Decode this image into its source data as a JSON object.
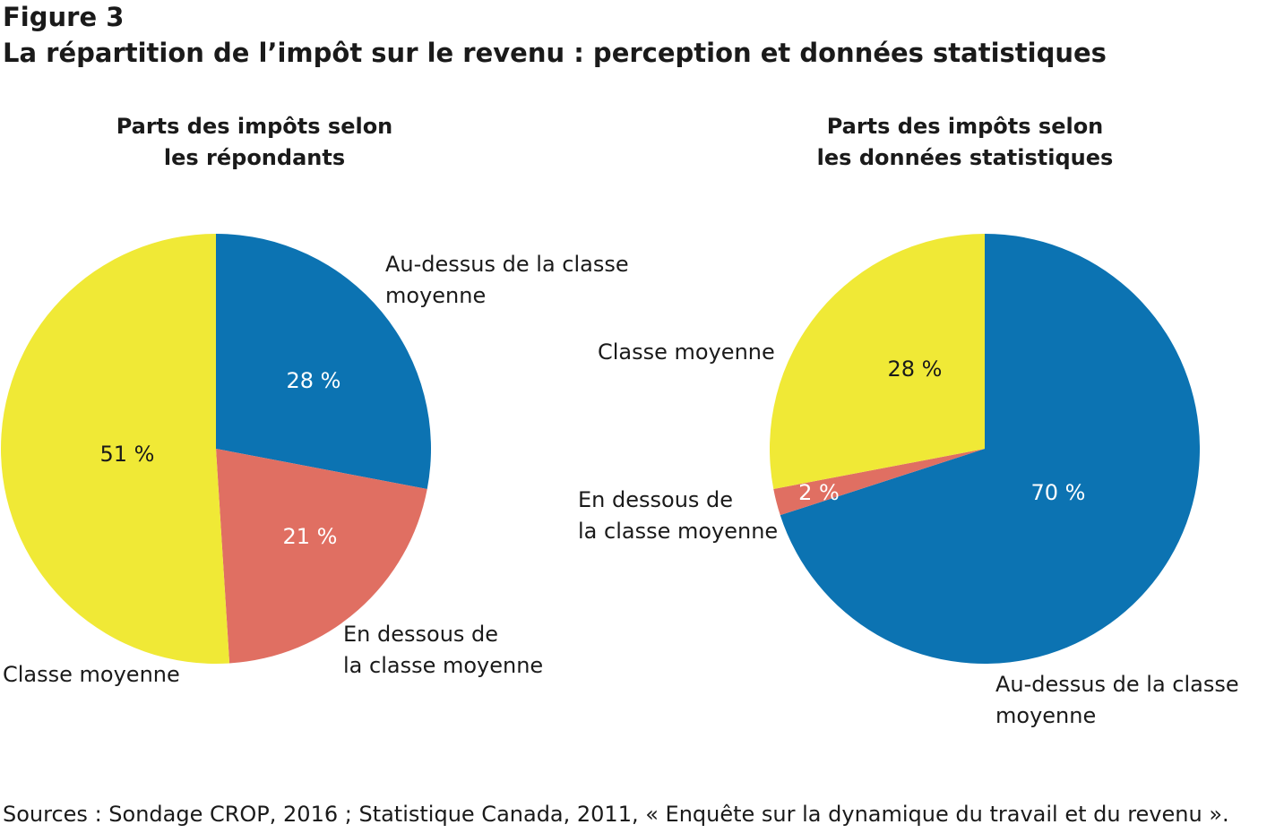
{
  "figure": {
    "number": "Figure 3",
    "title": "La répartition de l’impôt sur le revenu : perception et données statistiques",
    "source": "Sources : Sondage CROP, 2016 ; Statistique Canada, 2011, « Enquête sur la dynamique du travail et du revenu »."
  },
  "colors": {
    "above": "#0c73b2",
    "below": "#e06f62",
    "middle": "#f0e936"
  },
  "chart_data": [
    {
      "type": "pie",
      "title_lines": [
        "Parts des impôts selon",
        "les répondants"
      ],
      "slices": [
        {
          "name_lines": [
            "Au-dessus de la classe",
            "moyenne"
          ],
          "value": 28,
          "label": "28 %",
          "color": "#0c73b2",
          "label_color": "#ffffff"
        },
        {
          "name_lines": [
            "En dessous de",
            "la classe moyenne"
          ],
          "value": 21,
          "label": "21 %",
          "color": "#e06f62",
          "label_color": "#ffffff"
        },
        {
          "name_lines": [
            "Classe moyenne"
          ],
          "value": 51,
          "label": "51 %",
          "color": "#f0e936",
          "label_color": "#1a1a1a"
        }
      ]
    },
    {
      "type": "pie",
      "title_lines": [
        "Parts des impôts selon",
        "les données statistiques"
      ],
      "slices": [
        {
          "name_lines": [
            "Au-dessus de la classe",
            "moyenne"
          ],
          "value": 70,
          "label": "70 %",
          "color": "#0c73b2",
          "label_color": "#ffffff"
        },
        {
          "name_lines": [
            "En dessous de",
            "la classe moyenne"
          ],
          "value": 2,
          "label": "2 %",
          "color": "#e06f62",
          "label_color": "#ffffff"
        },
        {
          "name_lines": [
            "Classe moyenne"
          ],
          "value": 28,
          "label": "28 %",
          "color": "#f0e936",
          "label_color": "#1a1a1a"
        }
      ]
    }
  ]
}
